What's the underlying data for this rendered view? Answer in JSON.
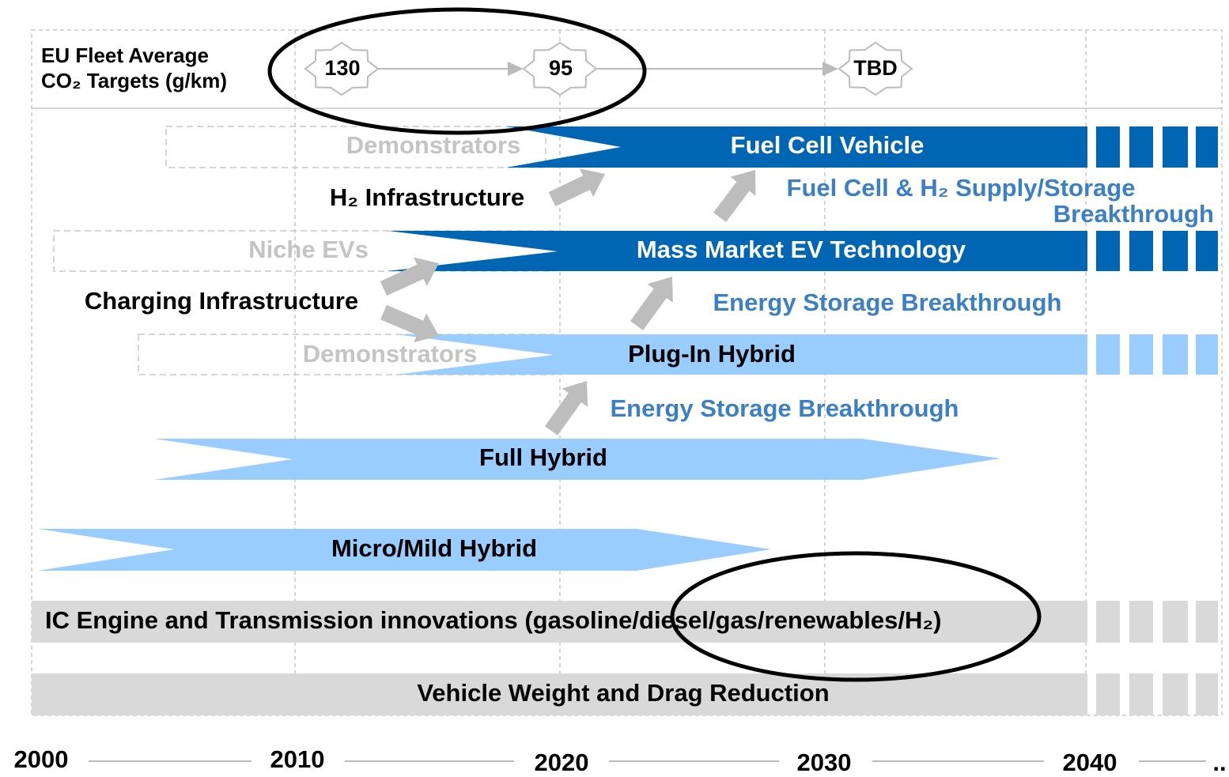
{
  "targets": {
    "label": [
      "EU Fleet Average",
      "CO₂ Targets (g/km)"
    ],
    "values": [
      130,
      95,
      "TBD"
    ]
  },
  "rows": {
    "fuel_cell": {
      "label": "Fuel Cell Vehicle",
      "precursor": "Demonstrators"
    },
    "h2_infrastructure": "H₂ Infrastructure",
    "fuel_cell_breakthrough": [
      "Fuel Cell & H₂ Supply/Storage",
      "Breakthrough"
    ],
    "mass_market_ev": {
      "label": "Mass Market EV Technology",
      "precursor": "Niche EVs"
    },
    "charging_infrastructure": "Charging Infrastructure",
    "energy_storage_1": "Energy Storage Breakthrough",
    "plug_in_hybrid": {
      "label": "Plug-In Hybrid",
      "precursor": "Demonstrators"
    },
    "energy_storage_2": "Energy Storage Breakthrough",
    "full_hybrid": "Full Hybrid",
    "micro_mild_hybrid": "Micro/Mild Hybrid",
    "ic_engine": "IC Engine and Transmission innovations (gasoline/diesel/gas/renewables/H₂)",
    "weight_drag": "Vehicle Weight and Drag Reduction"
  },
  "timeline": [
    "2000",
    "2010",
    "2020",
    "2030",
    "2040",
    ".."
  ]
}
